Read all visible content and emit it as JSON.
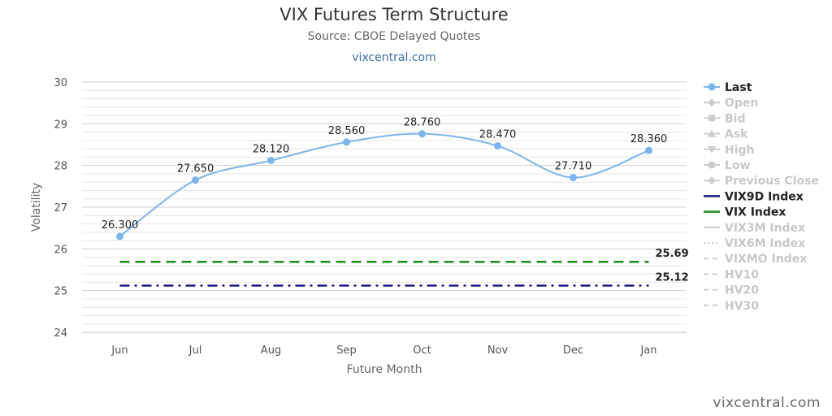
{
  "chart_data": {
    "type": "line",
    "title": "VIX Futures Term Structure",
    "subtitle": "Source: CBOE Delayed Quotes",
    "link": "vixcentral.com",
    "watermark": "vixcentral.com",
    "xlabel": "Future Month",
    "ylabel": "Volatility",
    "categories": [
      "Jun",
      "Jul",
      "Aug",
      "Sep",
      "Oct",
      "Nov",
      "Dec",
      "Jan"
    ],
    "ylim": [
      24,
      30
    ],
    "yticks": [
      24,
      25,
      26,
      27,
      28,
      29,
      30
    ],
    "grid": true,
    "series": [
      {
        "name": "Last",
        "values": [
          26.3,
          27.65,
          28.12,
          28.56,
          28.76,
          28.47,
          27.71,
          28.36
        ],
        "labels": [
          "26.300",
          "27.650",
          "28.120",
          "28.560",
          "28.760",
          "28.470",
          "27.710",
          "28.360"
        ],
        "color": "#7cb5ec"
      }
    ],
    "reference_lines": [
      {
        "name": "VIX Index",
        "value": 25.69,
        "label": "25.69",
        "color": "#1a8c1a",
        "style": "dash"
      },
      {
        "name": "VIX9D Index",
        "value": 25.12,
        "label": "25.12",
        "color": "#1a1a80",
        "style": "dashdot"
      }
    ],
    "legend": {
      "position": "right",
      "items": [
        {
          "name": "Last",
          "active": true,
          "symbol": "circle-line",
          "color": "#7cb5ec"
        },
        {
          "name": "Open",
          "active": false,
          "symbol": "diamond-line"
        },
        {
          "name": "Bid",
          "active": false,
          "symbol": "square-line"
        },
        {
          "name": "Ask",
          "active": false,
          "symbol": "triangle-line"
        },
        {
          "name": "High",
          "active": false,
          "symbol": "triangle-down-line"
        },
        {
          "name": "Low",
          "active": false,
          "symbol": "circle-line"
        },
        {
          "name": "Previous Close",
          "active": false,
          "symbol": "diamond-line"
        },
        {
          "name": "VIX9D Index",
          "active": true,
          "symbol": "line",
          "color": "#1a1a80"
        },
        {
          "name": "VIX Index",
          "active": true,
          "symbol": "line",
          "color": "#1a8c1a"
        },
        {
          "name": "VIX3M Index",
          "active": false,
          "symbol": "line"
        },
        {
          "name": "VIX6M Index",
          "active": false,
          "symbol": "dotted"
        },
        {
          "name": "VIXMO Index",
          "active": false,
          "symbol": "dashed"
        },
        {
          "name": "HV10",
          "active": false,
          "symbol": "dashed"
        },
        {
          "name": "HV20",
          "active": false,
          "symbol": "dashed"
        },
        {
          "name": "HV30",
          "active": false,
          "symbol": "dashed"
        }
      ]
    }
  }
}
